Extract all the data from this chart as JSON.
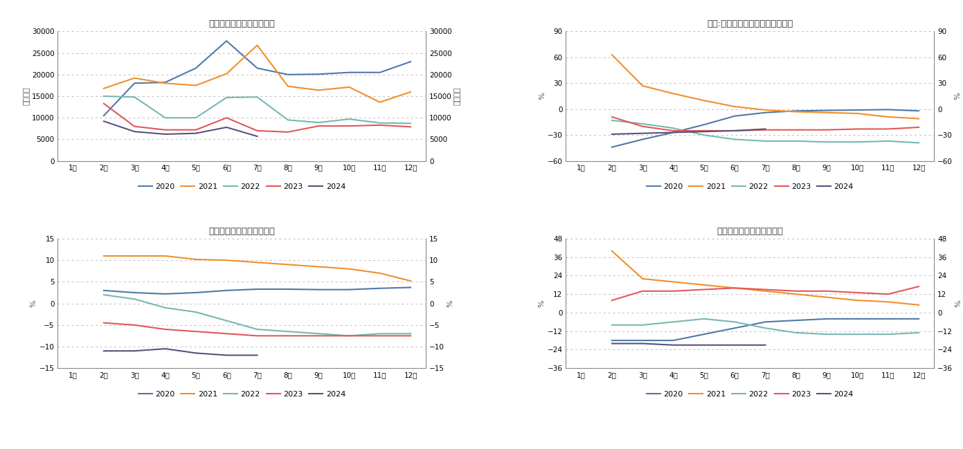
{
  "months": [
    "1月",
    "2月",
    "3月",
    "4月",
    "5月",
    "6月",
    "7月",
    "8月",
    "9月",
    "10月",
    "11月",
    "12月"
  ],
  "colors": {
    "2020": "#4e79a7",
    "2021": "#f28e2b",
    "2022": "#76b7b2",
    "2023": "#e15759",
    "2024": "#59517b"
  },
  "years": [
    "2020",
    "2021",
    "2022",
    "2023",
    "2024"
  ],
  "charts": [
    {
      "title": "房屋新开工面积（当月值）",
      "ylabel": "万平方米",
      "ylim": [
        0,
        30000
      ],
      "yticks": [
        0,
        5000,
        10000,
        15000,
        20000,
        25000,
        30000
      ],
      "data": {
        "2020": [
          null,
          10500,
          18000,
          18200,
          21500,
          27800,
          21500,
          20000,
          20100,
          20500,
          20500,
          23000
        ],
        "2021": [
          null,
          16800,
          19200,
          18000,
          17500,
          20200,
          26800,
          17300,
          16400,
          17100,
          13600,
          16000
        ],
        "2022": [
          null,
          15000,
          14800,
          10000,
          10000,
          14700,
          14800,
          9500,
          8900,
          9700,
          8800,
          8700
        ],
        "2023": [
          null,
          13300,
          8000,
          7200,
          7200,
          10000,
          7000,
          6700,
          8100,
          8100,
          8300,
          7900
        ],
        "2024": [
          null,
          9200,
          6800,
          6200,
          6400,
          7800,
          5700,
          null,
          null,
          null,
          null,
          null
        ]
      }
    },
    {
      "title": "中国:房屋新开工面积（累计同比）",
      "ylabel": "%",
      "ylim": [
        -60,
        90
      ],
      "yticks": [
        -60,
        -30,
        0,
        30,
        60,
        90
      ],
      "data": {
        "2020": [
          null,
          -44,
          -35,
          -27,
          -18,
          -8,
          -4,
          -2,
          -1.5,
          -1,
          -0.5,
          -2
        ],
        "2021": [
          null,
          63,
          27,
          18,
          10,
          3,
          -1,
          -3,
          -4,
          -5,
          -9,
          -11
        ],
        "2022": [
          null,
          -13,
          -17,
          -22,
          -30,
          -35,
          -37,
          -37,
          -38,
          -38,
          -37,
          -39
        ],
        "2023": [
          null,
          -9,
          -20,
          -25,
          -25,
          -25,
          -24,
          -24,
          -24,
          -23,
          -23,
          -21
        ],
        "2024": [
          null,
          -29,
          -28,
          -27,
          -26,
          -25,
          -23,
          null,
          null,
          null,
          null,
          null
        ]
      }
    },
    {
      "title": "房屋施工面积（累计同比）",
      "ylabel": "%",
      "ylim": [
        -15,
        15
      ],
      "yticks": [
        -15,
        -10,
        -5,
        0,
        5,
        10,
        15
      ],
      "data": {
        "2020": [
          null,
          3.0,
          2.5,
          2.2,
          2.5,
          3.0,
          3.3,
          3.3,
          3.2,
          3.2,
          3.5,
          3.7
        ],
        "2021": [
          null,
          11.0,
          11.0,
          11.0,
          10.2,
          10.0,
          9.5,
          9.0,
          8.5,
          8.0,
          7.0,
          5.2
        ],
        "2022": [
          null,
          2.0,
          1.0,
          -1.0,
          -2.0,
          -4.0,
          -6.0,
          -6.5,
          -7.0,
          -7.5,
          -7.0,
          -7.0
        ],
        "2023": [
          null,
          -4.5,
          -5.0,
          -6.0,
          -6.5,
          -7.0,
          -7.5,
          -7.5,
          -7.5,
          -7.5,
          -7.5,
          -7.5
        ],
        "2024": [
          null,
          -11.0,
          -11.0,
          -10.5,
          -11.5,
          -12.0,
          -12.0,
          null,
          null,
          null,
          null,
          null
        ]
      }
    },
    {
      "title": "房屋竣工面积（累计同比）",
      "ylabel": "%",
      "ylim": [
        -36,
        48
      ],
      "yticks": [
        -36,
        -24,
        -12,
        0,
        12,
        24,
        36,
        48
      ],
      "data": {
        "2020": [
          null,
          -18,
          -18,
          -18,
          -14,
          -10,
          -6,
          -5,
          -4,
          -4,
          -4,
          -4
        ],
        "2021": [
          null,
          40,
          22,
          20,
          18,
          16,
          14,
          12,
          10,
          8,
          7,
          5
        ],
        "2022": [
          null,
          -8,
          -8,
          -6,
          -4,
          -6,
          -10,
          -13,
          -14,
          -14,
          -14,
          -13
        ],
        "2023": [
          null,
          8,
          14,
          14,
          15,
          16,
          15,
          14,
          14,
          13,
          12,
          17
        ],
        "2024": [
          null,
          -20,
          -20,
          -21,
          -21,
          -21,
          -21,
          null,
          null,
          null,
          null,
          null
        ]
      }
    }
  ]
}
